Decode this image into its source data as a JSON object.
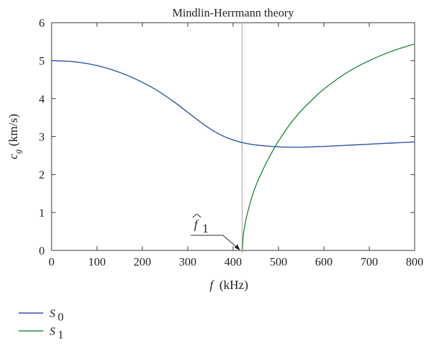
{
  "chart_data": {
    "type": "line",
    "title": "Mindlin-Herrmann theory",
    "xlabel": {
      "symbol": "f",
      "unit": "(kHz)"
    },
    "ylabel": {
      "symbol": "c",
      "subscript": "g",
      "unit": "(km/s)"
    },
    "xlim": [
      0,
      800
    ],
    "ylim": [
      0,
      6
    ],
    "xticks": [
      0,
      100,
      200,
      300,
      400,
      500,
      600,
      700,
      800
    ],
    "yticks": [
      0,
      1,
      2,
      3,
      4,
      5,
      6
    ],
    "grid": false,
    "legend": "bottom-left, below plot",
    "annotation": {
      "text": "f",
      "subscript": "1",
      "accent": "^",
      "x": 420,
      "y": 0
    },
    "cutoff_line_x": 420,
    "series": [
      {
        "name": "S",
        "subscript": "0",
        "color": "#2b4fa2",
        "x": [
          0,
          25,
          50,
          75,
          100,
          125,
          150,
          175,
          200,
          225,
          250,
          275,
          300,
          325,
          350,
          375,
          400,
          425,
          450,
          475,
          500,
          525,
          550,
          575,
          600,
          650,
          700,
          750,
          800
        ],
        "y": [
          5.0,
          4.99,
          4.97,
          4.93,
          4.87,
          4.79,
          4.69,
          4.57,
          4.43,
          4.27,
          4.08,
          3.87,
          3.64,
          3.41,
          3.2,
          3.03,
          2.91,
          2.83,
          2.78,
          2.75,
          2.73,
          2.72,
          2.72,
          2.73,
          2.74,
          2.77,
          2.8,
          2.83,
          2.86
        ]
      },
      {
        "name": "S",
        "subscript": "1",
        "color": "#1f8a3c",
        "x": [
          420,
          422,
          425,
          430,
          440,
          450,
          460,
          475,
          490,
          500,
          525,
          550,
          575,
          600,
          650,
          700,
          750,
          800
        ],
        "y": [
          0.0,
          0.35,
          0.6,
          0.9,
          1.35,
          1.7,
          1.98,
          2.35,
          2.68,
          2.88,
          3.32,
          3.68,
          3.98,
          4.25,
          4.68,
          5.0,
          5.25,
          5.44
        ]
      }
    ]
  }
}
